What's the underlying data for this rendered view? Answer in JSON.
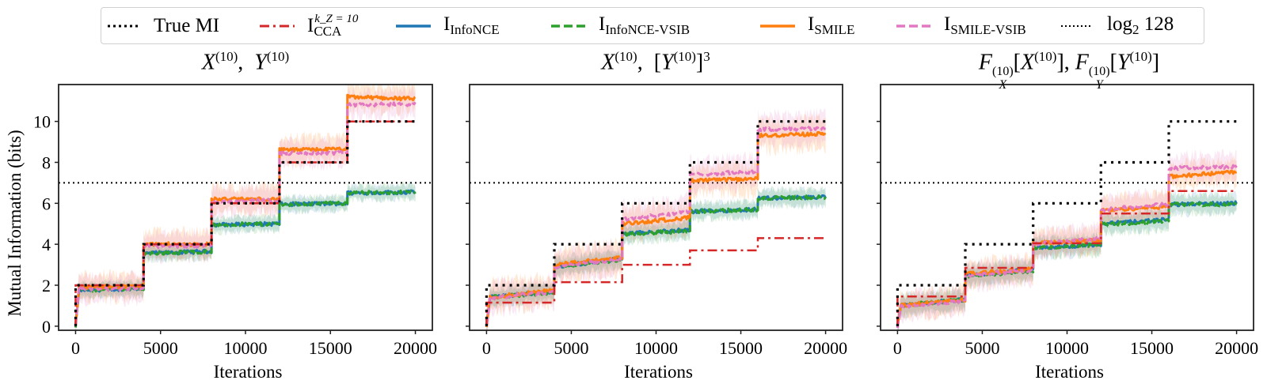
{
  "legend": {
    "items": [
      {
        "key": "true_mi",
        "label": "True MI",
        "color": "#000000",
        "style": "dotted"
      },
      {
        "key": "cca",
        "label_main": "I",
        "label_sub": "CCA",
        "label_sup": "k_Z = 10",
        "color": "#d62728",
        "style": "dashdot"
      },
      {
        "key": "infonce",
        "label_main": "I",
        "label_sub": "InfoNCE",
        "color": "#1f77b4",
        "style": "solid"
      },
      {
        "key": "infonce_vsib",
        "label_main": "I",
        "label_sub": "InfoNCE-VSIB",
        "color": "#2ca02c",
        "style": "dashed"
      },
      {
        "key": "smile",
        "label_main": "I",
        "label_sub": "SMILE",
        "color": "#ff7f0e",
        "style": "solid"
      },
      {
        "key": "smile_vsib",
        "label_main": "I",
        "label_sub": "SMILE-VSIB",
        "color": "#e377c2",
        "style": "dashed"
      },
      {
        "key": "log2_128",
        "label_main": "log",
        "label_sub": "2",
        "label_tail": " 128",
        "color": "#000000",
        "style": "dotted"
      }
    ]
  },
  "chart_data": [
    {
      "type": "line",
      "title": "X^(10), Y^(10)",
      "title_parts": {
        "a": "X",
        "a_sup": "(10)",
        "sep": ",  ",
        "b": "Y",
        "b_sup": "(10)"
      },
      "xlabel": "Iterations",
      "ylabel": "Mutual Information (bits)",
      "xlim": [
        -1000,
        21000
      ],
      "ylim": [
        -0.2,
        11.8
      ],
      "xticks": [
        0,
        5000,
        10000,
        15000,
        20000
      ],
      "yticks": [
        0,
        2,
        4,
        6,
        8,
        10
      ],
      "xtick_labels": [
        "0",
        "5000",
        "10000",
        "15000",
        "20000"
      ],
      "ytick_labels": [
        "0",
        "2",
        "4",
        "6",
        "8",
        "10"
      ],
      "reference_line": {
        "name": "log2 128",
        "y": 7
      },
      "step_edges": [
        0,
        4000,
        8000,
        12000,
        16000,
        20000
      ],
      "series": [
        {
          "key": "true_mi",
          "name": "True MI",
          "blocks": [
            2,
            4,
            6,
            8,
            10
          ]
        },
        {
          "key": "cca",
          "name": "I_CCA^{k_Z=10}",
          "blocks": [
            2,
            4,
            6,
            8,
            10
          ]
        },
        {
          "key": "infonce",
          "name": "I_InfoNCE",
          "blocks_start": [
            1.75,
            3.55,
            4.95,
            5.95,
            6.5
          ],
          "blocks_end": [
            1.85,
            3.65,
            5.0,
            6.0,
            6.55
          ],
          "band": 0.35
        },
        {
          "key": "infonce_vsib",
          "name": "I_InfoNCE-VSIB",
          "blocks_start": [
            1.75,
            3.55,
            4.95,
            5.95,
            6.5
          ],
          "blocks_end": [
            1.85,
            3.65,
            5.0,
            6.0,
            6.55
          ],
          "band": 0.35
        },
        {
          "key": "smile",
          "name": "I_SMILE",
          "blocks_start": [
            1.9,
            4.0,
            6.2,
            8.6,
            11.2
          ],
          "blocks_end": [
            1.95,
            4.0,
            6.2,
            8.65,
            11.1
          ],
          "band": 0.6
        },
        {
          "key": "smile_vsib",
          "name": "I_SMILE-VSIB",
          "blocks_start": [
            1.8,
            3.9,
            6.1,
            8.45,
            10.8
          ],
          "blocks_end": [
            1.85,
            3.95,
            6.15,
            8.45,
            10.85
          ],
          "band": 0.6
        }
      ]
    },
    {
      "type": "line",
      "title": "X^(10), [Y^(10)]^3",
      "title_parts": {
        "a": "X",
        "a_sup": "(10)",
        "sep": ",  [",
        "b": "Y",
        "b_sup": "(10)",
        "tail": "]",
        "tail_sup": "3"
      },
      "xlabel": "Iterations",
      "ylabel": "",
      "xlim": [
        -1000,
        21000
      ],
      "ylim": [
        -0.2,
        11.8
      ],
      "xticks": [
        0,
        5000,
        10000,
        15000,
        20000
      ],
      "yticks": [
        0,
        2,
        4,
        6,
        8,
        10
      ],
      "xtick_labels": [
        "0",
        "5000",
        "10000",
        "15000",
        "20000"
      ],
      "ytick_labels": [],
      "reference_line": {
        "name": "log2 128",
        "y": 7
      },
      "step_edges": [
        0,
        4000,
        8000,
        12000,
        16000,
        20000
      ],
      "series": [
        {
          "key": "true_mi",
          "name": "True MI",
          "blocks": [
            2,
            4,
            6,
            8,
            10
          ]
        },
        {
          "key": "cca",
          "name": "I_CCA^{k_Z=10}",
          "blocks": [
            1.15,
            2.15,
            3.0,
            3.7,
            4.3
          ]
        },
        {
          "key": "infonce",
          "name": "I_InfoNCE",
          "blocks_start": [
            1.4,
            2.9,
            4.5,
            5.6,
            6.25
          ],
          "blocks_end": [
            1.7,
            3.3,
            4.7,
            5.7,
            6.3
          ],
          "band": 0.4
        },
        {
          "key": "infonce_vsib",
          "name": "I_InfoNCE-VSIB",
          "blocks_start": [
            1.4,
            2.9,
            4.5,
            5.6,
            6.25
          ],
          "blocks_end": [
            1.65,
            3.25,
            4.65,
            5.7,
            6.3
          ],
          "band": 0.4
        },
        {
          "key": "smile",
          "name": "I_SMILE",
          "blocks_start": [
            1.4,
            3.0,
            5.0,
            7.1,
            9.3
          ],
          "blocks_end": [
            1.75,
            3.35,
            5.3,
            7.2,
            9.4
          ],
          "band": 0.7
        },
        {
          "key": "smile_vsib",
          "name": "I_SMILE-VSIB",
          "blocks_start": [
            1.35,
            2.9,
            5.2,
            7.4,
            9.6
          ],
          "blocks_end": [
            1.7,
            3.3,
            5.6,
            7.55,
            9.65
          ],
          "band": 0.7
        }
      ]
    },
    {
      "type": "line",
      "title": "F_X^(10)[X^(10)], F_Y^(10)[Y^(10)]",
      "title_parts": {
        "a": "F",
        "a_sup": "(10)",
        "a_sub": "X",
        "a_arg": "X",
        "a_arg_sup": "(10)",
        "b": "F",
        "b_sup": "(10)",
        "b_sub": "Y",
        "b_arg": "Y",
        "b_arg_sup": "(10)"
      },
      "xlabel": "Iterations",
      "ylabel": "",
      "xlim": [
        -1000,
        21000
      ],
      "ylim": [
        -0.2,
        11.8
      ],
      "xticks": [
        0,
        5000,
        10000,
        15000,
        20000
      ],
      "yticks": [
        0,
        2,
        4,
        6,
        8,
        10
      ],
      "xtick_labels": [
        "0",
        "5000",
        "10000",
        "15000",
        "20000"
      ],
      "ytick_labels": [],
      "reference_line": {
        "name": "log2 128",
        "y": 7
      },
      "step_edges": [
        0,
        4000,
        8000,
        12000,
        16000,
        20000
      ],
      "series": [
        {
          "key": "true_mi",
          "name": "True MI",
          "blocks": [
            2,
            4,
            6,
            8,
            10
          ]
        },
        {
          "key": "cca",
          "name": "I_CCA^{k_Z=10}",
          "blocks": [
            1.45,
            2.85,
            4.05,
            5.5,
            6.6
          ]
        },
        {
          "key": "infonce",
          "name": "I_InfoNCE",
          "blocks_start": [
            1.0,
            2.5,
            3.8,
            5.0,
            5.95
          ],
          "blocks_end": [
            1.3,
            2.75,
            4.0,
            5.2,
            6.0
          ],
          "band": 0.45
        },
        {
          "key": "infonce_vsib",
          "name": "I_InfoNCE-VSIB",
          "blocks_start": [
            1.0,
            2.45,
            3.8,
            4.95,
            5.95
          ],
          "blocks_end": [
            1.3,
            2.7,
            4.0,
            5.15,
            5.95
          ],
          "band": 0.45
        },
        {
          "key": "smile",
          "name": "I_SMILE",
          "blocks_start": [
            1.0,
            2.55,
            4.05,
            5.65,
            7.3
          ],
          "blocks_end": [
            1.3,
            2.8,
            4.2,
            5.85,
            7.55
          ],
          "band": 0.6
        },
        {
          "key": "smile_vsib",
          "name": "I_SMILE-VSIB",
          "blocks_start": [
            0.95,
            2.45,
            4.0,
            5.7,
            7.7
          ],
          "blocks_end": [
            1.25,
            2.75,
            4.3,
            5.95,
            7.8
          ],
          "band": 0.6
        }
      ]
    }
  ]
}
